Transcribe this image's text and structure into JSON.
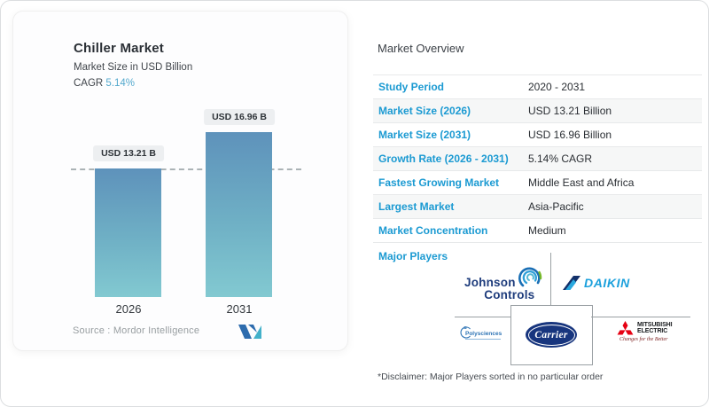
{
  "chart_card": {
    "title": "Chiller Market",
    "subtitle": "Market Size in USD Billion",
    "cagr_label": "CAGR ",
    "cagr_value": "5.14%",
    "source_label": "Source :  Mordor Intelligence",
    "bar_gradient_top": "#5e92bb",
    "bar_gradient_bottom": "#82c9d1",
    "value_tag_bg": "#edeff1"
  },
  "chart_data": {
    "type": "bar",
    "title": "Chiller Market",
    "ylabel": "Market Size in USD Billion",
    "categories": [
      "2026",
      "2031"
    ],
    "values": [
      13.21,
      16.96
    ],
    "bar_value_labels": [
      "USD 13.21 B",
      "USD 16.96 B"
    ],
    "unit": "USD Billion",
    "cagr_percent": 5.14,
    "reference_line_value": 13.21,
    "ylim": [
      0,
      16.96
    ],
    "grid": false,
    "legend": "none",
    "source": "Mordor Intelligence"
  },
  "overview": {
    "heading": "Market Overview",
    "label_color": "#1b9ad2",
    "rows": [
      {
        "label": "Study Period",
        "value": "2020 - 2031"
      },
      {
        "label": "Market Size (2026)",
        "value": "USD 13.21 Billion"
      },
      {
        "label": "Market Size (2031)",
        "value": "USD 16.96 Billion"
      },
      {
        "label": "Growth Rate (2026 - 2031)",
        "value": "5.14% CAGR"
      },
      {
        "label": "Fastest Growing Market",
        "value": "Middle East and Africa"
      },
      {
        "label": "Largest Market",
        "value": "Asia-Pacific"
      },
      {
        "label": "Market Concentration",
        "value": "Medium"
      }
    ],
    "major_players_label": "Major Players",
    "players": [
      "Johnson Controls",
      "Daikin",
      "Polysciences",
      "Carrier",
      "Mitsubishi Electric"
    ],
    "disclaimer": "*Disclaimer: Major Players sorted in no particular order"
  },
  "logos": {
    "johnson_controls": {
      "line1": "Johnson",
      "line2": "Controls"
    },
    "daikin": {
      "text": "DAIKIN"
    },
    "polysciences": {
      "text": "Polysciences"
    },
    "carrier": {
      "text": "Carrier"
    },
    "mitsubishi": {
      "line1": "MITSUBISHI",
      "line2": "ELECTRIC",
      "tagline": "Changes for the Better"
    }
  },
  "icons": {
    "mordor_logo": "mordor-intelligence-mark",
    "jc_swirl": "johnson-controls-swirl-icon",
    "daikin_mark": "daikin-flag-icon",
    "mitsubishi_mark": "mitsubishi-three-diamonds-icon",
    "polysciences_mark": "polysciences-circle-icon"
  }
}
